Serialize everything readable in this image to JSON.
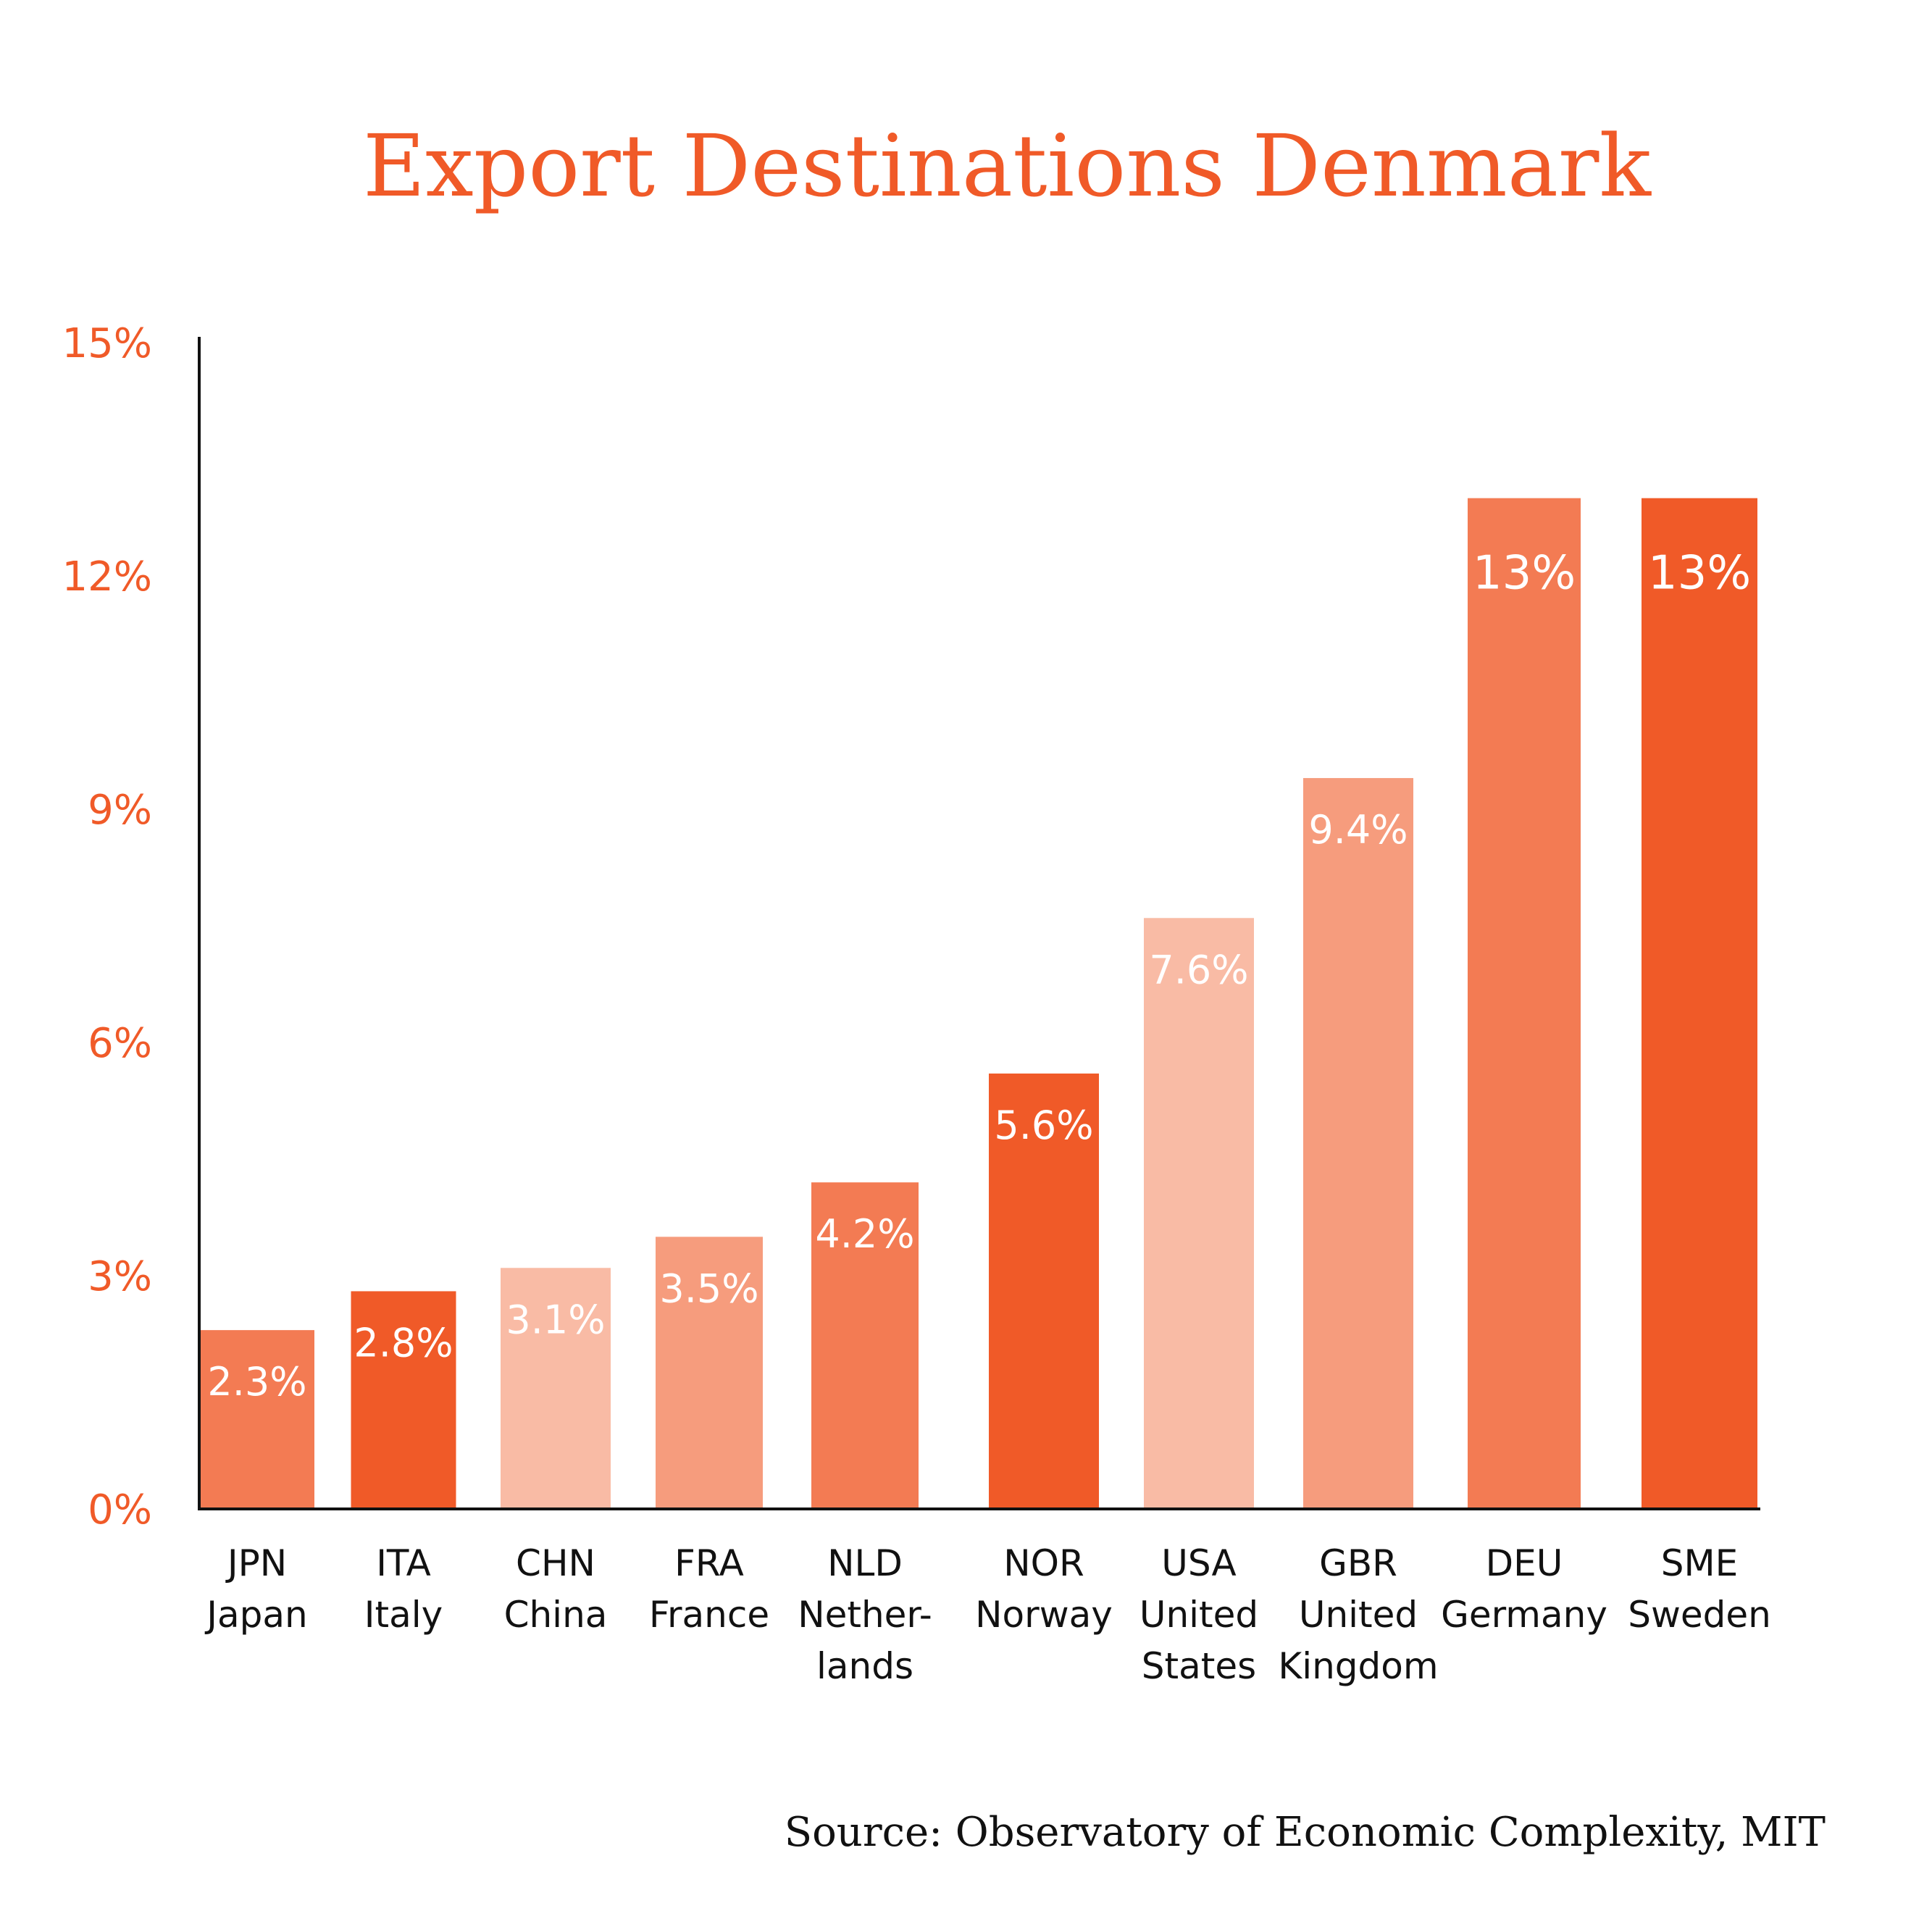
{
  "chart_data": {
    "type": "bar",
    "title": "Export Destinations Denmark",
    "xlabel": "",
    "ylabel": "",
    "ylim": [
      0,
      15
    ],
    "yticks": [
      0,
      3,
      6,
      9,
      12,
      15
    ],
    "ytick_labels": [
      "0%",
      "3%",
      "6%",
      "9%",
      "12%",
      "15%"
    ],
    "grid": false,
    "legend": null,
    "categories": [
      {
        "code": "JPN",
        "name_lines": [
          "Japan"
        ]
      },
      {
        "code": "ITA",
        "name_lines": [
          "Italy"
        ]
      },
      {
        "code": "CHN",
        "name_lines": [
          "China"
        ]
      },
      {
        "code": "FRA",
        "name_lines": [
          "France"
        ]
      },
      {
        "code": "NLD",
        "name_lines": [
          "Nether-",
          "lands"
        ]
      },
      {
        "code": "NOR",
        "name_lines": [
          "Norway"
        ]
      },
      {
        "code": "USA",
        "name_lines": [
          "United",
          "States"
        ]
      },
      {
        "code": "GBR",
        "name_lines": [
          "United",
          "Kingdom"
        ]
      },
      {
        "code": "DEU",
        "name_lines": [
          "Germany"
        ]
      },
      {
        "code": "SME",
        "name_lines": [
          "Sweden"
        ]
      }
    ],
    "values": [
      2.3,
      2.8,
      3.1,
      3.5,
      4.2,
      5.6,
      7.6,
      9.4,
      13,
      13
    ],
    "value_labels": [
      "2.3%",
      "2.8%",
      "3.1%",
      "3.5%",
      "4.2%",
      "5.6%",
      "7.6%",
      "9.4%",
      "13%",
      "13%"
    ],
    "bar_colors": [
      "#F37B53",
      "#F05A28",
      "#F9BBA5",
      "#F69C7D",
      "#F37B53",
      "#F05A28",
      "#F9BBA5",
      "#F69C7D",
      "#F37B53",
      "#F05A28"
    ],
    "source": "Source: Observatory of Economic Complexity, MIT"
  },
  "colors": {
    "accent": "#F05A28",
    "axis": "#111111",
    "label_text": "#ffffff"
  }
}
